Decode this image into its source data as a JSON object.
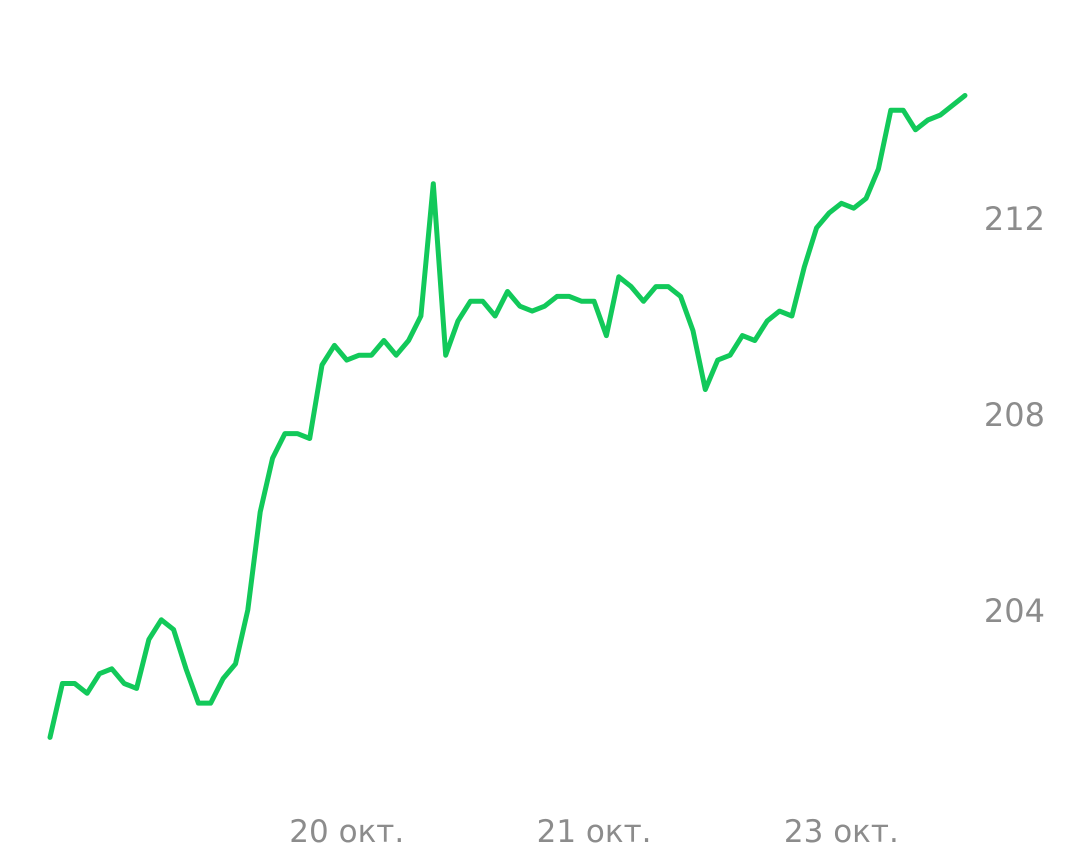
{
  "chart_data": {
    "type": "line",
    "title": "",
    "xlabel": "",
    "ylabel": "",
    "grid": false,
    "legend": "none",
    "x_tick_labels": [
      "20 окт.",
      "21 окт.",
      "23 окт."
    ],
    "x_tick_indices": [
      24,
      44,
      64
    ],
    "y_ticks": [
      204,
      208,
      212
    ],
    "ylim": [
      199.6,
      215.6
    ],
    "series": [
      {
        "color": "#12c95a",
        "values": [
          201.4,
          202.5,
          202.5,
          202.3,
          202.7,
          202.8,
          202.5,
          202.4,
          203.4,
          203.8,
          203.6,
          202.8,
          202.1,
          202.1,
          202.6,
          202.9,
          204.0,
          206.0,
          207.1,
          207.6,
          207.6,
          207.5,
          209.0,
          209.4,
          209.1,
          209.2,
          209.2,
          209.5,
          209.2,
          209.5,
          210.0,
          212.7,
          209.2,
          209.9,
          210.3,
          210.3,
          210.0,
          210.5,
          210.2,
          210.1,
          210.2,
          210.4,
          210.4,
          210.3,
          210.3,
          209.6,
          210.8,
          210.6,
          210.3,
          210.6,
          210.6,
          210.4,
          209.7,
          208.5,
          209.1,
          209.2,
          209.6,
          209.5,
          209.9,
          210.1,
          210.0,
          211.0,
          211.8,
          212.1,
          212.3,
          212.2,
          212.4,
          213.0,
          214.2,
          214.2,
          213.8,
          214.0,
          214.1,
          214.3,
          214.5
        ]
      }
    ]
  }
}
